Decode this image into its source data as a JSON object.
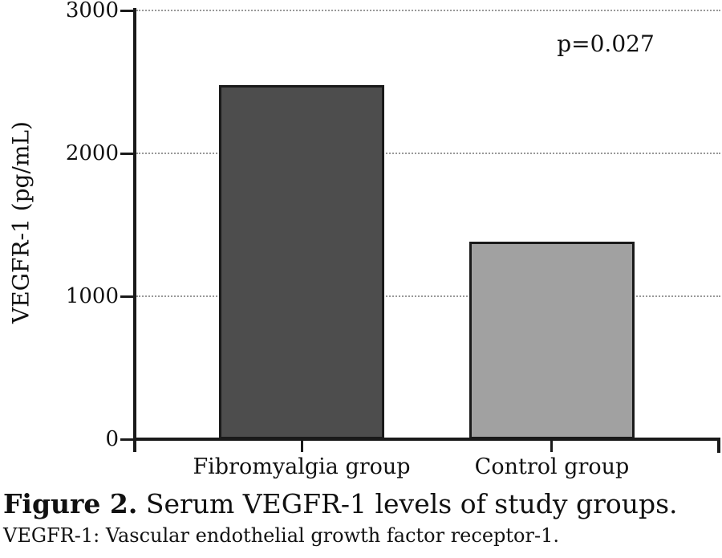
{
  "chart_data": {
    "type": "bar",
    "title": "",
    "ylabel": "VEGFR-1 (pg/mL)",
    "xlabel": "",
    "categories": [
      "Fibromyalgia group",
      "Control group"
    ],
    "values": [
      2480,
      1380
    ],
    "ylim": [
      0,
      3000
    ],
    "yticks": [
      0,
      1000,
      2000,
      3000
    ],
    "annotation": "p=0.027",
    "legend_position": "none",
    "grid": {
      "axis": "y",
      "style": "dotted",
      "color": "#999999"
    },
    "colors": {
      "bar_fills": [
        "#4d4d4d",
        "#a1a1a1"
      ],
      "bar_border": "#1a1a1a",
      "axis": "#1a1a1a",
      "text": "#111111"
    }
  },
  "caption": {
    "label": "Figure 2.",
    "text": "Serum VEGFR-1 levels of study groups."
  },
  "footnote": "VEGFR-1: Vascular endothelial growth factor receptor-1."
}
